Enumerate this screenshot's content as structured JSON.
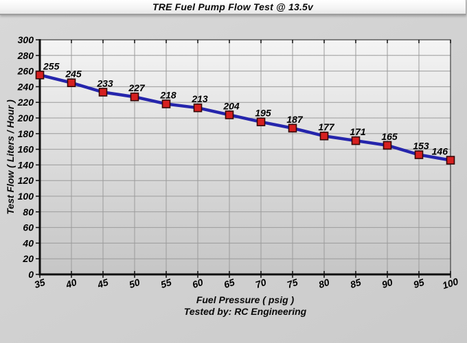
{
  "window_title": "TRE Fuel Pump Flow Test @ 13.5v",
  "chart_data": {
    "type": "line",
    "title": "TRE Fuel Pump Flow Test @ 13.5v",
    "xlabel": "Fuel Pressure ( psig )",
    "ylabel": "Test Flow ( Liters / Hour )",
    "footer": "Tested by: RC Engineering",
    "x": [
      35,
      40,
      45,
      50,
      55,
      60,
      65,
      70,
      75,
      80,
      85,
      90,
      95,
      100
    ],
    "series": [
      {
        "name": "Test Flow",
        "values": [
          255,
          245,
          233,
          227,
          218,
          213,
          204,
          195,
          187,
          177,
          171,
          165,
          153,
          146
        ]
      }
    ],
    "data_labels": [
      "255",
      "245",
      "233",
      "227",
      "218",
      "213",
      "204",
      "195",
      "187",
      "177",
      "171",
      "165",
      "153",
      "146"
    ],
    "xlim": [
      35,
      100
    ],
    "ylim": [
      0,
      300
    ],
    "x_ticks": [
      35,
      40,
      45,
      50,
      55,
      60,
      65,
      70,
      75,
      80,
      85,
      90,
      95,
      100
    ],
    "y_ticks": [
      0,
      20,
      40,
      60,
      80,
      100,
      120,
      140,
      160,
      180,
      200,
      220,
      240,
      260,
      280,
      300
    ],
    "grid": true,
    "legend": "none",
    "colors": {
      "line": "#2525ac",
      "marker_fill": "#d62020",
      "marker_border": "#330808",
      "grid": "#9b9b9b",
      "axis": "#0d0d0d",
      "frame": "#3e3e3e",
      "label": "#000000"
    }
  }
}
